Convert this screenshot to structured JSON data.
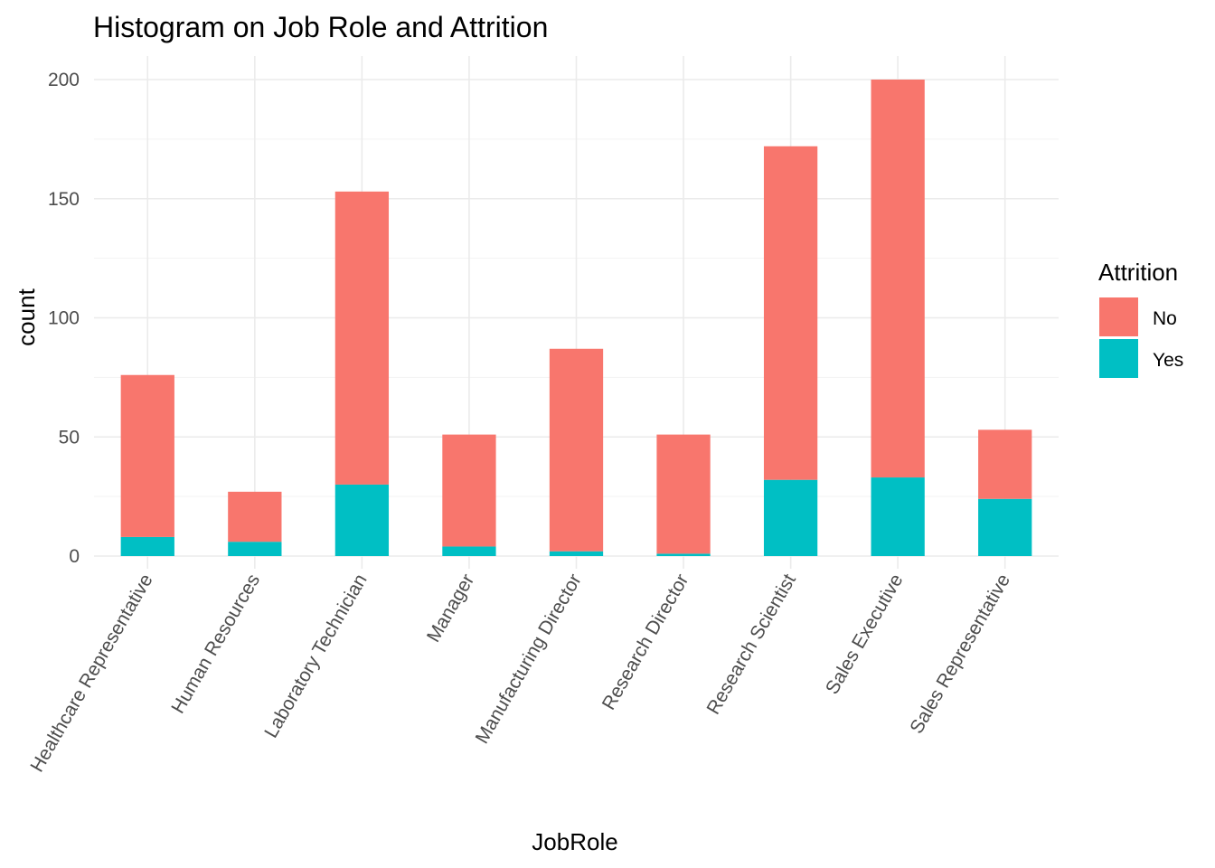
{
  "chart_data": {
    "type": "bar",
    "stacked": true,
    "title": "Histogram on Job Role and Attrition",
    "xlabel": "JobRole",
    "ylabel": "count",
    "ylim": [
      0,
      210
    ],
    "yticks": [
      0,
      50,
      100,
      150,
      200
    ],
    "grid": true,
    "legend": {
      "title": "Attrition",
      "position": "right"
    },
    "categories": [
      "Healthcare Representative",
      "Human Resources",
      "Laboratory Technician",
      "Manager",
      "Manufacturing Director",
      "Research Director",
      "Research Scientist",
      "Sales Executive",
      "Sales Representative"
    ],
    "series": [
      {
        "name": "Yes",
        "color": "#00BFC4",
        "values": [
          8,
          6,
          30,
          4,
          2,
          1,
          32,
          33,
          24
        ]
      },
      {
        "name": "No",
        "color": "#F8766D",
        "values": [
          68,
          21,
          123,
          47,
          85,
          50,
          140,
          167,
          29
        ]
      }
    ]
  }
}
